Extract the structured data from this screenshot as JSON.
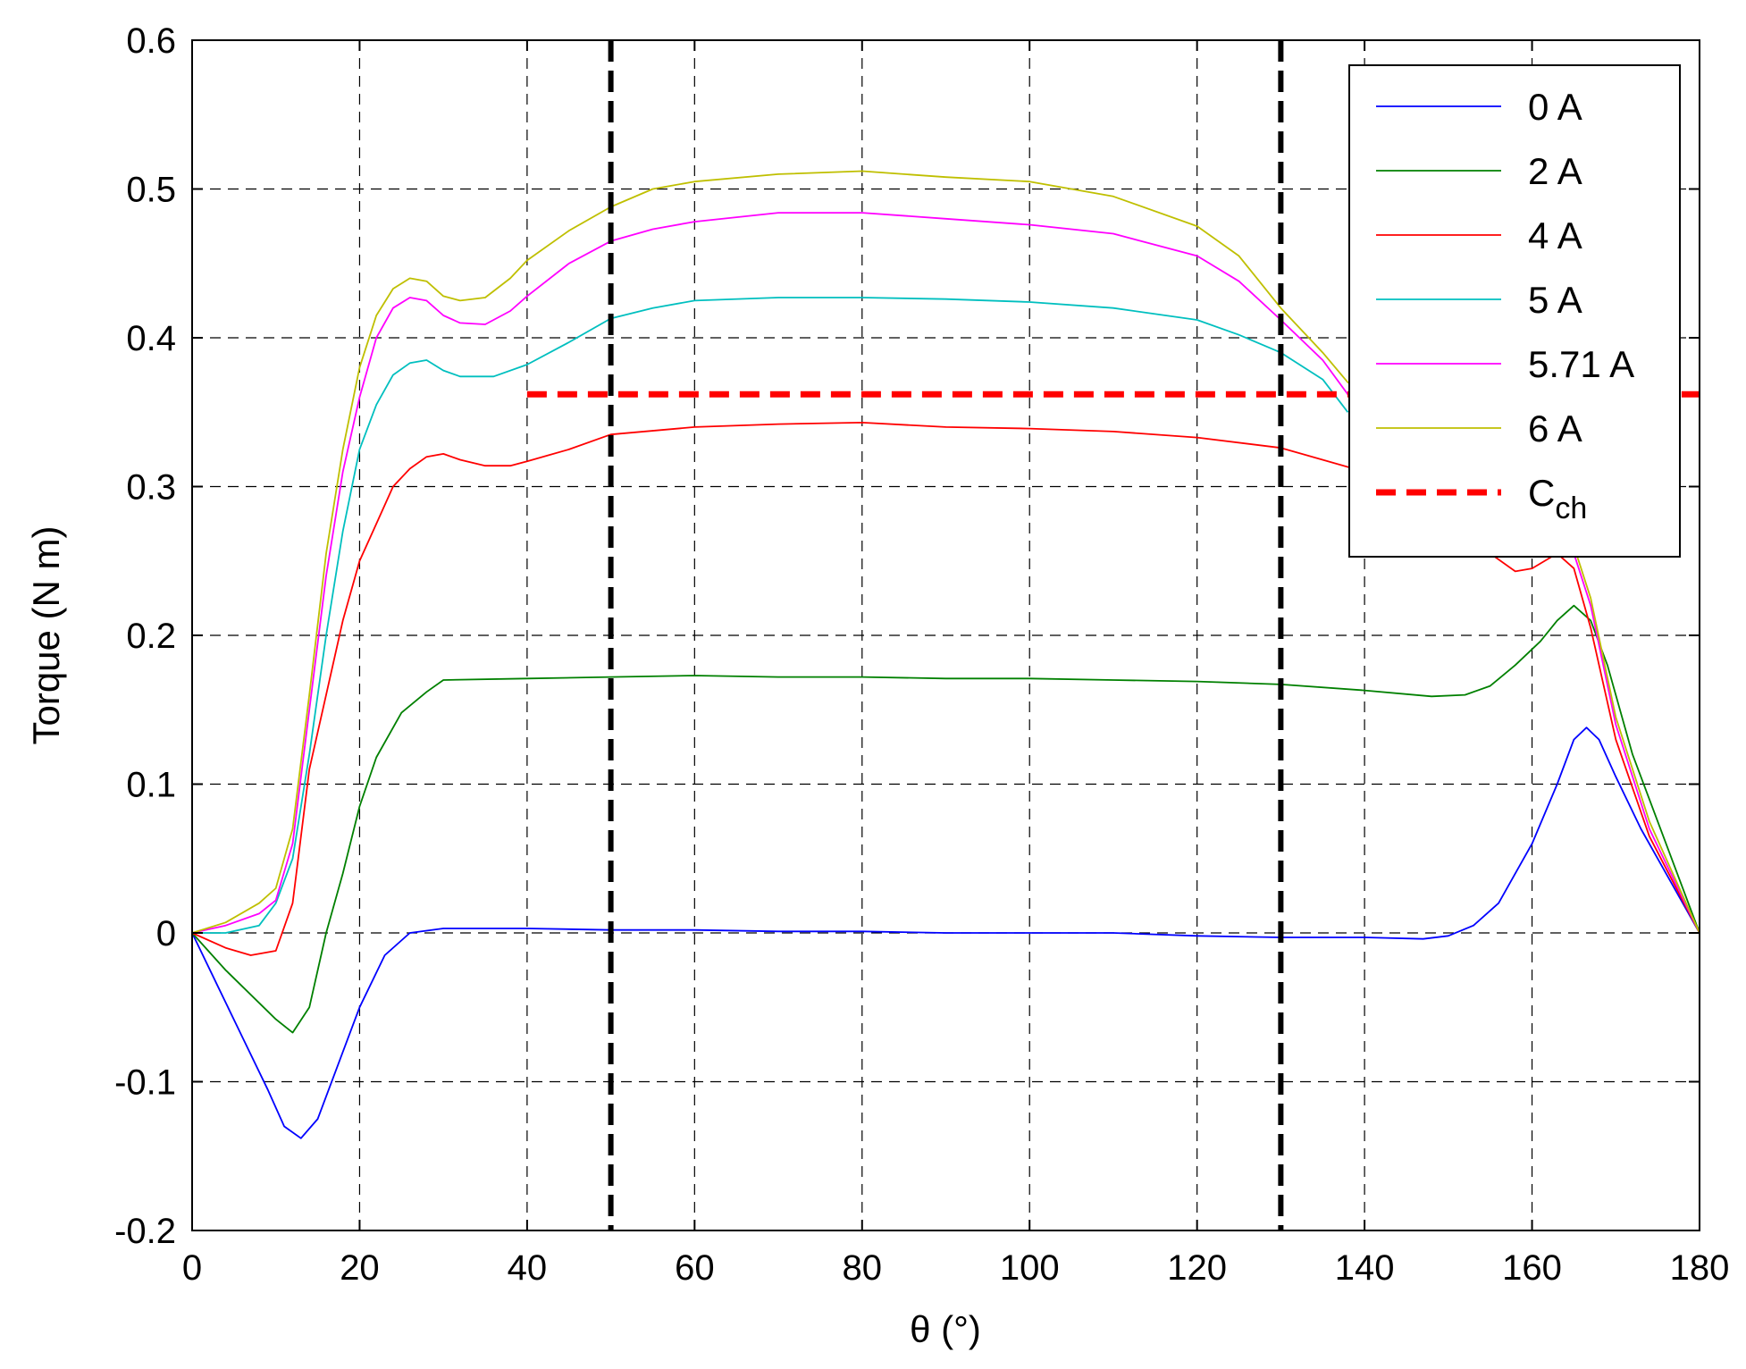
{
  "chart_data": {
    "type": "line",
    "title": "",
    "xlabel": "θ (°)",
    "ylabel": "Torque (N m)",
    "xlim": [
      0,
      180
    ],
    "ylim": [
      -0.2,
      0.6
    ],
    "x_ticks": [
      0,
      20,
      40,
      60,
      80,
      100,
      120,
      140,
      160,
      180
    ],
    "x_tick_labels": [
      "0",
      "20",
      "40",
      "60",
      "80",
      "100",
      "120",
      "140",
      "160",
      "180"
    ],
    "y_ticks": [
      -0.2,
      -0.1,
      0,
      0.1,
      0.2,
      0.3,
      0.4,
      0.5,
      0.6
    ],
    "y_tick_labels": [
      "-0.2",
      "-0.1",
      "0",
      "0.1",
      "0.2",
      "0.3",
      "0.4",
      "0.5",
      "0.6"
    ],
    "grid": true,
    "legend_position": "top-right",
    "series": [
      {
        "name": "0 A",
        "color": "#0000ff",
        "x": [
          0,
          3,
          6,
          9,
          11,
          13,
          15,
          17,
          20,
          23,
          26,
          30,
          35,
          40,
          50,
          60,
          70,
          80,
          90,
          100,
          110,
          120,
          130,
          140,
          147,
          150,
          153,
          156,
          160,
          163,
          165,
          166.5,
          168,
          170,
          173,
          176,
          180
        ],
        "y": [
          0,
          -0.035,
          -0.07,
          -0.105,
          -0.13,
          -0.138,
          -0.125,
          -0.095,
          -0.05,
          -0.015,
          0,
          0.003,
          0.003,
          0.003,
          0.002,
          0.002,
          0.001,
          0.001,
          0,
          0,
          0,
          -0.002,
          -0.003,
          -0.003,
          -0.004,
          -0.002,
          0.005,
          0.02,
          0.06,
          0.1,
          0.13,
          0.138,
          0.13,
          0.105,
          0.07,
          0.04,
          0
        ]
      },
      {
        "name": "2 A",
        "color": "#008000",
        "x": [
          0,
          4,
          8,
          10,
          12,
          14,
          16,
          18,
          20,
          22,
          25,
          28,
          30,
          40,
          50,
          60,
          70,
          80,
          90,
          100,
          110,
          120,
          130,
          140,
          148,
          152,
          155,
          158,
          161,
          163,
          165,
          167,
          169,
          172,
          176,
          180
        ],
        "y": [
          0,
          -0.025,
          -0.047,
          -0.058,
          -0.067,
          -0.05,
          0,
          0.04,
          0.085,
          0.118,
          0.148,
          0.162,
          0.17,
          0.171,
          0.172,
          0.173,
          0.172,
          0.172,
          0.171,
          0.171,
          0.17,
          0.169,
          0.167,
          0.163,
          0.159,
          0.16,
          0.166,
          0.18,
          0.196,
          0.21,
          0.22,
          0.21,
          0.18,
          0.12,
          0.06,
          0
        ]
      },
      {
        "name": "4 A",
        "color": "#ff0000",
        "x": [
          0,
          4,
          7,
          10,
          12,
          14,
          16,
          18,
          20,
          22,
          24,
          26,
          28,
          30,
          32,
          35,
          38,
          40,
          45,
          50,
          60,
          70,
          80,
          90,
          100,
          110,
          120,
          130,
          140,
          145,
          150,
          155,
          158,
          160,
          163,
          165,
          167,
          170,
          174,
          180
        ],
        "y": [
          0,
          -0.01,
          -0.015,
          -0.012,
          0.02,
          0.11,
          0.16,
          0.21,
          0.25,
          0.275,
          0.3,
          0.312,
          0.32,
          0.322,
          0.318,
          0.314,
          0.314,
          0.317,
          0.325,
          0.335,
          0.34,
          0.342,
          0.343,
          0.34,
          0.339,
          0.337,
          0.333,
          0.326,
          0.31,
          0.3,
          0.285,
          0.255,
          0.243,
          0.245,
          0.255,
          0.245,
          0.205,
          0.13,
          0.065,
          0
        ]
      },
      {
        "name": "5 A",
        "color": "#00bfbf",
        "x": [
          0,
          4,
          8,
          10,
          12,
          14,
          16,
          18,
          20,
          22,
          24,
          26,
          28,
          30,
          32,
          36,
          40,
          45,
          50,
          55,
          60,
          70,
          80,
          90,
          100,
          110,
          120,
          125,
          130,
          135,
          138
        ],
        "y": [
          0,
          0,
          0.005,
          0.02,
          0.05,
          0.12,
          0.2,
          0.27,
          0.325,
          0.355,
          0.375,
          0.383,
          0.385,
          0.378,
          0.374,
          0.374,
          0.382,
          0.397,
          0.413,
          0.42,
          0.425,
          0.427,
          0.427,
          0.426,
          0.424,
          0.42,
          0.412,
          0.402,
          0.39,
          0.372,
          0.35
        ]
      },
      {
        "name": "5.71 A",
        "color": "#ff00ff",
        "x": [
          0,
          4,
          8,
          10,
          12,
          14,
          16,
          18,
          20,
          22,
          24,
          26,
          28,
          30,
          32,
          35,
          38,
          40,
          45,
          50,
          55,
          60,
          70,
          80,
          90,
          100,
          110,
          120,
          125,
          130,
          135,
          138,
          150,
          160,
          163,
          165,
          167,
          170,
          174,
          180
        ],
        "y": [
          0,
          0.005,
          0.013,
          0.022,
          0.06,
          0.15,
          0.24,
          0.31,
          0.36,
          0.4,
          0.42,
          0.427,
          0.425,
          0.415,
          0.41,
          0.409,
          0.418,
          0.428,
          0.45,
          0.465,
          0.473,
          0.478,
          0.484,
          0.484,
          0.48,
          0.476,
          0.47,
          0.455,
          0.438,
          0.412,
          0.385,
          0.362,
          0.32,
          0.27,
          0.26,
          0.255,
          0.22,
          0.14,
          0.07,
          0
        ]
      },
      {
        "name": "6 A",
        "color": "#bfbf00",
        "x": [
          0,
          4,
          8,
          10,
          12,
          14,
          16,
          18,
          20,
          22,
          24,
          26,
          28,
          30,
          32,
          35,
          38,
          40,
          45,
          50,
          55,
          60,
          70,
          80,
          90,
          100,
          110,
          120,
          125,
          130,
          135,
          138,
          150,
          160,
          163,
          165,
          167,
          170,
          174,
          180
        ],
        "y": [
          0,
          0.007,
          0.02,
          0.03,
          0.07,
          0.16,
          0.255,
          0.325,
          0.38,
          0.415,
          0.433,
          0.44,
          0.438,
          0.428,
          0.425,
          0.427,
          0.44,
          0.452,
          0.472,
          0.488,
          0.5,
          0.505,
          0.51,
          0.512,
          0.508,
          0.505,
          0.495,
          0.475,
          0.455,
          0.42,
          0.39,
          0.37,
          0.325,
          0.275,
          0.265,
          0.26,
          0.225,
          0.145,
          0.075,
          0
        ]
      }
    ],
    "reference_lines": [
      {
        "name": "C",
        "name_subscript": "ch",
        "orientation": "horizontal",
        "y": 0.362,
        "x_range": [
          40,
          180
        ],
        "color": "#ff0000",
        "style": "dashed"
      },
      {
        "orientation": "vertical",
        "x": 50,
        "color": "#000000",
        "style": "dashed"
      },
      {
        "orientation": "vertical",
        "x": 130,
        "color": "#000000",
        "style": "dashed"
      }
    ]
  }
}
